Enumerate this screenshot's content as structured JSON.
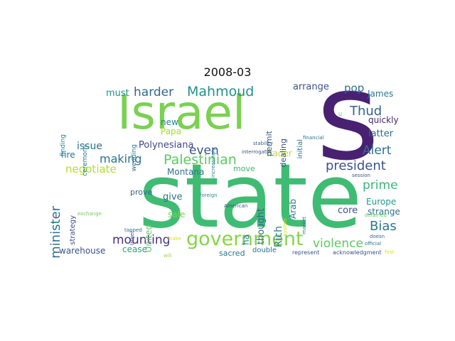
{
  "title": "2008-03",
  "words": [
    {
      "text": "state",
      "color": "#3fbc73"
    },
    {
      "text": "Israel",
      "color": "#7ad151"
    },
    {
      "text": "s",
      "color": "#482173"
    },
    {
      "text": "government",
      "color": "#86d549"
    },
    {
      "text": "Palestinian",
      "color": "#5ec962"
    },
    {
      "text": "president",
      "color": "#3b528b"
    },
    {
      "text": "Mahmoud",
      "color": "#21918c"
    },
    {
      "text": "harder",
      "color": "#31688e"
    },
    {
      "text": "violence",
      "color": "#5ec962"
    },
    {
      "text": "mounting",
      "color": "#46327e"
    },
    {
      "text": "Bias",
      "color": "#2a788e"
    },
    {
      "text": "minister",
      "color": "#2c728e"
    },
    {
      "text": "prime",
      "color": "#35b779"
    },
    {
      "text": "Alert",
      "color": "#2c728e"
    },
    {
      "text": "Thud",
      "color": "#33638d"
    },
    {
      "text": "even",
      "color": "#3b528b"
    },
    {
      "text": "making",
      "color": "#2c728e"
    },
    {
      "text": "negotiate",
      "color": "#b5de2b"
    },
    {
      "text": "issue",
      "color": "#2c728e"
    },
    {
      "text": "Polynesiana",
      "color": "#3e4989"
    },
    {
      "text": "pop",
      "color": "#2c728e"
    },
    {
      "text": "arrange",
      "color": "#3b528b"
    },
    {
      "text": "James",
      "color": "#2a788e"
    },
    {
      "text": "must",
      "color": "#21918c"
    },
    {
      "text": "new",
      "color": "#25858e"
    },
    {
      "text": "Papa",
      "color": "#a5db36"
    },
    {
      "text": "latter",
      "color": "#31688e"
    },
    {
      "text": "quickly",
      "color": "#482475"
    },
    {
      "text": "Trader",
      "color": "#c2df23"
    },
    {
      "text": "Arab",
      "color": "#2c728e"
    },
    {
      "text": "Montana",
      "color": "#2c728e"
    },
    {
      "text": "move",
      "color": "#35b779"
    },
    {
      "text": "fire",
      "color": "#2c728e"
    },
    {
      "text": "give",
      "color": "#2c728e"
    },
    {
      "text": "sale",
      "color": "#7ad151"
    },
    {
      "text": "prove",
      "color": "#33638d"
    },
    {
      "text": "Europe",
      "color": "#1f9e89"
    },
    {
      "text": "strange",
      "color": "#2c728e"
    },
    {
      "text": "core",
      "color": "#3b528b"
    },
    {
      "text": "Rich",
      "color": "#2a788e"
    },
    {
      "text": "thought",
      "color": "#31688e"
    },
    {
      "text": "ha",
      "color": "#2a788e"
    },
    {
      "text": "United",
      "color": "#5ec962"
    },
    {
      "text": "cease",
      "color": "#22a884"
    },
    {
      "text": "warehouse",
      "color": "#3b528b"
    },
    {
      "text": "sacred",
      "color": "#2c728e"
    },
    {
      "text": "double",
      "color": "#2c728e"
    },
    {
      "text": "represent",
      "color": "#3b528b"
    },
    {
      "text": "acknowledgment",
      "color": "#3b528b"
    },
    {
      "text": "first",
      "color": "#d8e219"
    },
    {
      "text": "strategy",
      "color": "#3b528b"
    },
    {
      "text": "ceremony",
      "color": "#2c728e"
    },
    {
      "text": "finding",
      "color": "#2a788e"
    },
    {
      "text": "wedding",
      "color": "#2c728e"
    },
    {
      "text": "increasingly",
      "color": "#2a788e"
    },
    {
      "text": "permit",
      "color": "#3b528b"
    },
    {
      "text": "dealing",
      "color": "#3b528b"
    },
    {
      "text": "initial",
      "color": "#2c728e"
    },
    {
      "text": "financial",
      "color": "#2c728e"
    },
    {
      "text": "stability",
      "color": "#33638d"
    },
    {
      "text": "interrogator",
      "color": "#3b528b"
    },
    {
      "text": "session",
      "color": "#3b528b"
    },
    {
      "text": "foreign",
      "color": "#21918c"
    },
    {
      "text": "American",
      "color": "#3b528b"
    },
    {
      "text": "exchange",
      "color": "#6ece58"
    },
    {
      "text": "larger",
      "color": "#3b528b"
    },
    {
      "text": "tapped",
      "color": "#2c728e"
    },
    {
      "text": "stake",
      "color": "#d8e219"
    },
    {
      "text": "will",
      "color": "#a0da39"
    },
    {
      "text": "official",
      "color": "#2c728e"
    },
    {
      "text": "doesn",
      "color": "#31688e"
    },
    {
      "text": "detained",
      "color": "#5ec962"
    },
    {
      "text": "market",
      "color": "#2a788e"
    },
    {
      "text": "system",
      "color": "#d8e219"
    },
    {
      "text": "U",
      "color": "#5ec962"
    }
  ]
}
